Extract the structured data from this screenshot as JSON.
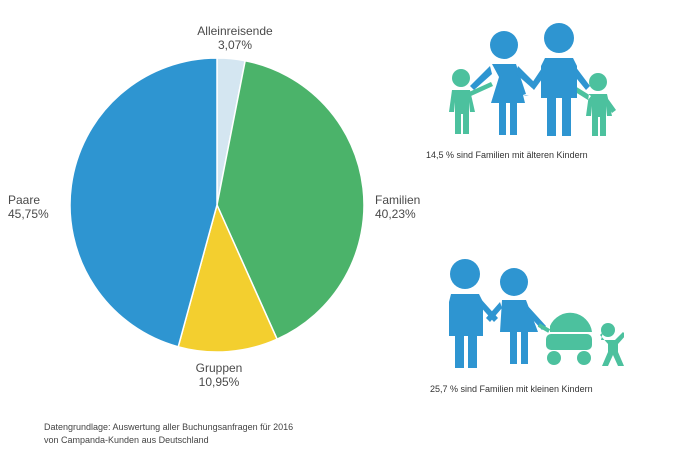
{
  "chart_data": {
    "type": "pie",
    "slices": [
      {
        "label": "Alleinreisende",
        "value": 3.07,
        "value_text": "3,07%",
        "color": "#d4e6f1"
      },
      {
        "label": "Familien",
        "value": 40.23,
        "value_text": "40,23%",
        "color": "#4bb36a"
      },
      {
        "label": "Gruppen",
        "value": 10.95,
        "value_text": "10,95%",
        "color": "#f3cf2f"
      },
      {
        "label": "Paare",
        "value": 45.75,
        "value_text": "45,75%",
        "color": "#2e95d1"
      }
    ]
  },
  "infographic": {
    "older_kids_caption": "14,5 % sind Familien mit älteren Kindern",
    "small_kids_caption": "25,7 % sind Familien mit kleinen Kindern"
  },
  "footnote": {
    "line1": "Datengrundlage: Auswertung aller Buchungsanfragen für 2016",
    "line2": "von Campanda-Kunden aus Deutschland"
  },
  "colors": {
    "adult": "#2e95d1",
    "child": "#4cc19e"
  }
}
